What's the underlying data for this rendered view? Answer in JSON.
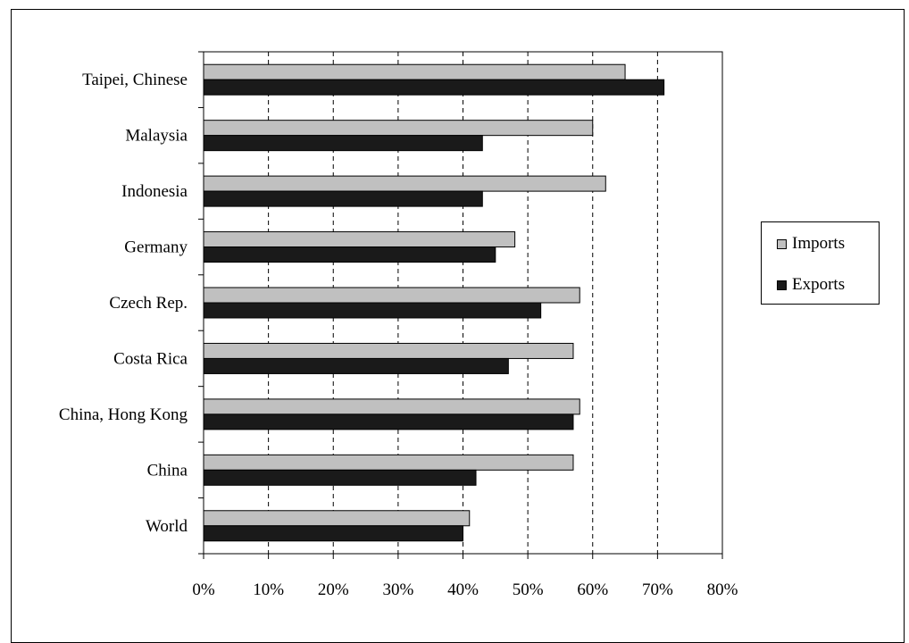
{
  "chart_data": {
    "type": "bar",
    "orientation": "horizontal",
    "categories": [
      "World",
      "China",
      "China, Hong Kong",
      "Costa Rica",
      "Czech Rep.",
      "Germany",
      "Indonesia",
      "Malaysia",
      "Taipei, Chinese"
    ],
    "series": [
      {
        "name": "Imports",
        "color": "#c0c0c0",
        "values": [
          41,
          57,
          58,
          57,
          58,
          48,
          62,
          60,
          65
        ]
      },
      {
        "name": "Exports",
        "color": "#1a1a1a",
        "values": [
          40,
          42,
          57,
          47,
          52,
          45,
          43,
          43,
          71
        ]
      }
    ],
    "xlim": [
      0,
      80
    ],
    "xticks": [
      "0%",
      "10%",
      "20%",
      "30%",
      "40%",
      "50%",
      "60%",
      "70%",
      "80%"
    ],
    "x_unit": "percent",
    "grid": "vertical dashed",
    "legend_position": "right",
    "title": "",
    "xlabel": "",
    "ylabel": ""
  }
}
